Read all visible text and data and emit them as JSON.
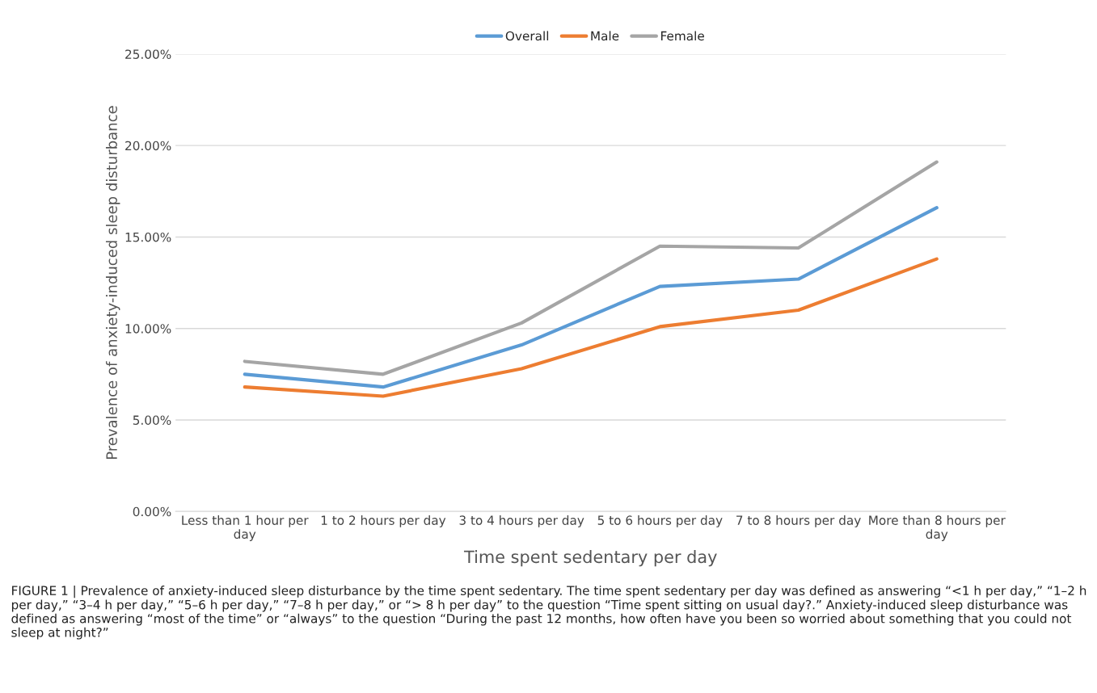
{
  "chart_data": {
    "type": "line",
    "xlabel": "Time spent sedentary per day",
    "ylabel": "Prevalence of anxiety-induced sleep disturbance",
    "categories": [
      "Less than 1 hour per\nday",
      "1 to 2 hours per day",
      "3 to 4 hours per day",
      "5 to 6 hours per day",
      "7 to 8 hours per day",
      "More than 8 hours per\nday"
    ],
    "series": [
      {
        "name": "Overall",
        "color": "#5b9bd5",
        "values": [
          7.5,
          6.8,
          9.1,
          12.3,
          12.7,
          16.6
        ]
      },
      {
        "name": "Male",
        "color": "#ed7d31",
        "values": [
          6.8,
          6.3,
          7.8,
          10.1,
          11.0,
          13.8
        ]
      },
      {
        "name": "Female",
        "color": "#a5a5a5",
        "values": [
          8.2,
          7.5,
          10.3,
          14.5,
          14.4,
          19.1
        ]
      }
    ],
    "ylim": [
      0,
      25
    ],
    "yticks": [
      {
        "value": 0,
        "label": "0.00%"
      },
      {
        "value": 5,
        "label": "5.00%"
      },
      {
        "value": 10,
        "label": "10.00%"
      },
      {
        "value": 15,
        "label": "15.00%"
      },
      {
        "value": 20,
        "label": "20.00%"
      },
      {
        "value": 25,
        "label": "25.00%"
      }
    ],
    "grid": "y",
    "legend": "top",
    "marker": "none",
    "line_style": "solid",
    "annotations": [
      "FIGURE 1 | Prevalence of anxiety-induced sleep disturbance by the time spent sedentary. The time spent sedentary per day was defined as answering “<1 h per day,” “1–2 h per day,” “3–4 h per day,” “5–6 h per day,” “7–8 h per day,” or “> 8 h per day” to the question “Time spent sitting on usual day?.” Anxiety-induced sleep disturbance was defined as answering “most of the time” or “always” to the question “During the past 12 months, how often have you been so worried about something that you could not sleep at night?”"
    ]
  }
}
